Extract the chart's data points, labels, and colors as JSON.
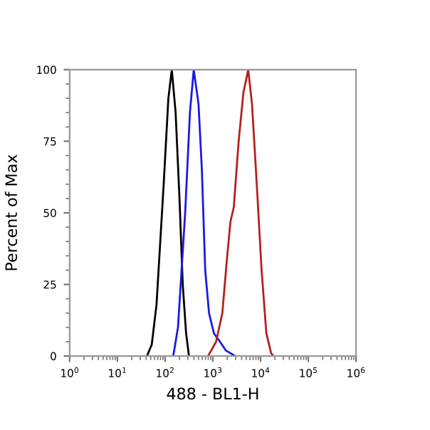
{
  "chart_data": {
    "type": "line",
    "xlabel": "488 - BL1-H",
    "ylabel": "Percent of Max",
    "log": "x",
    "xlim": [
      1,
      1000000
    ],
    "ylim": [
      0,
      100
    ],
    "xticks": [
      {
        "value": 1,
        "label": "10$^{0}$"
      },
      {
        "value": 10,
        "label": "10$^{1}$"
      },
      {
        "value": 100,
        "label": "10$^{2}$"
      },
      {
        "value": 1000,
        "label": "10$^{3}$"
      },
      {
        "value": 10000,
        "label": "10$^{4}$"
      },
      {
        "value": 100000,
        "label": "10$^{5}$"
      },
      {
        "value": 1000000,
        "label": "10$^{6}$"
      }
    ],
    "yticks": [
      0,
      25,
      50,
      75,
      100
    ],
    "grid": false,
    "legend": false,
    "series": [
      {
        "color": "#000000",
        "x": [
          41.7,
          52.5,
          66.1,
          93.3,
          117,
          138,
          166,
          200,
          234,
          275,
          316
        ],
        "values": [
          0,
          4,
          18,
          60,
          90,
          100,
          85,
          55,
          25,
          8,
          0
        ]
      },
      {
        "color": "#1a1ae0",
        "x": [
          148,
          186,
          263,
          331,
          398,
          501,
          589,
          692,
          832,
          1050,
          1410,
          1860,
          2950
        ],
        "values": [
          0,
          10,
          50,
          85,
          100,
          88,
          65,
          30,
          15,
          8,
          5,
          2,
          0
        ]
      },
      {
        "color": "#b52020",
        "x": [
          794,
          1170,
          1580,
          2000,
          2340,
          2750,
          3470,
          4370,
          5500,
          6610,
          8320,
          10500,
          13200,
          16600,
          18600
        ],
        "values": [
          0,
          5,
          15,
          35,
          47,
          52,
          75,
          92,
          100,
          88,
          60,
          30,
          8,
          1,
          0
        ]
      }
    ]
  }
}
